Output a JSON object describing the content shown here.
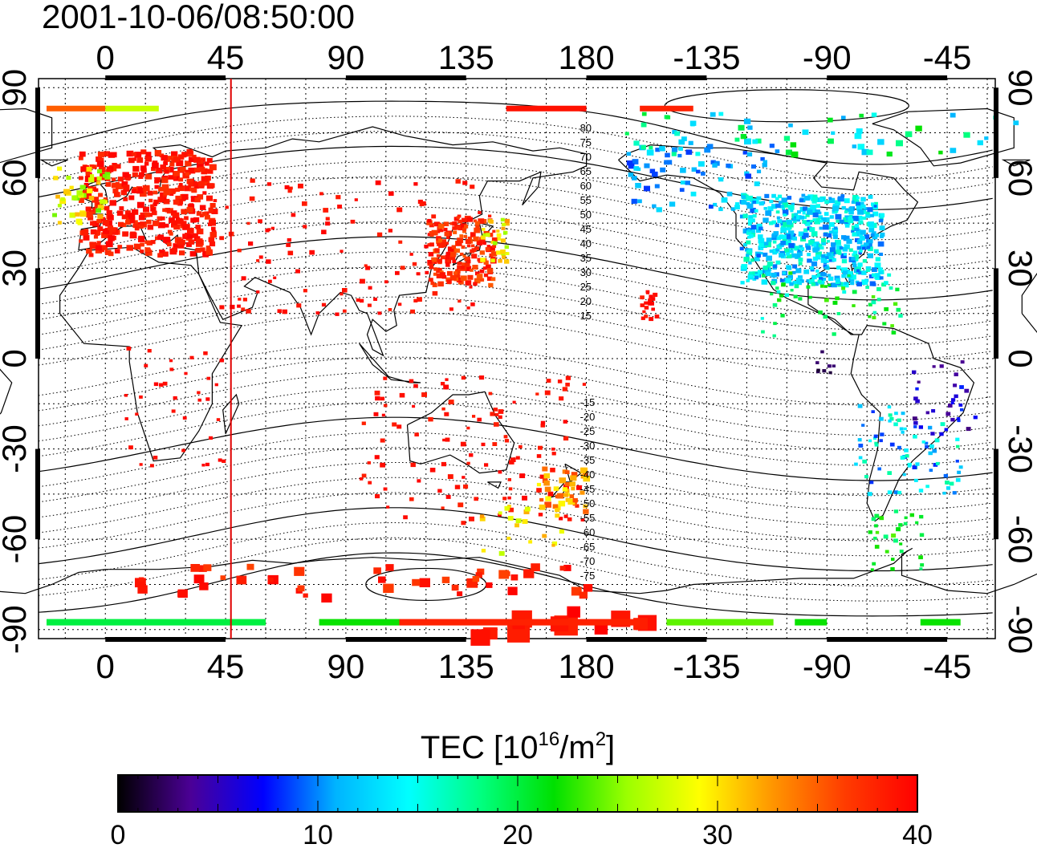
{
  "timestamp": "2001-10-06/08:50:00",
  "map": {
    "lon_ticks_top": [
      "0",
      "45",
      "90",
      "135",
      "180",
      "-135",
      "-90",
      "-45"
    ],
    "lon_ticks_bottom": [
      "0",
      "45",
      "90",
      "135",
      "180",
      "-135",
      "-90",
      "-45"
    ],
    "lat_ticks_left": [
      "90",
      "60",
      "30",
      "0",
      "-30",
      "-60",
      "-90"
    ],
    "lat_ticks_right": [
      "90",
      "60",
      "30",
      "0",
      "-30",
      "-60",
      "-90"
    ],
    "lon_tick_values": [
      0,
      45,
      90,
      135,
      180,
      225,
      270,
      315
    ],
    "lat_tick_values": [
      90,
      60,
      30,
      0,
      -30,
      -60,
      -90
    ],
    "lon_range": [
      -25,
      333
    ],
    "lat_range": [
      -93,
      93
    ],
    "grid": true,
    "marker_meridian_lon": 47,
    "marker_color": "#e00000",
    "contour_labels": [
      "80",
      "75",
      "70",
      "65",
      "60",
      "55",
      "50",
      "45",
      "40",
      "35",
      "30",
      "25",
      "20",
      "15",
      "-15",
      "-20",
      "-25",
      "-30",
      "-35",
      "-40",
      "-45",
      "-50",
      "-55",
      "-60",
      "-65",
      "-70",
      "-75"
    ],
    "contour_label_lats": [
      80,
      75,
      70,
      65,
      60,
      55,
      50,
      45,
      40,
      35,
      30,
      25,
      20,
      15,
      -15,
      -20,
      -25,
      -30,
      -35,
      -40,
      -45,
      -50,
      -55,
      -60,
      -65,
      -70,
      -75
    ],
    "contour_label_lon": 180
  },
  "colorbar": {
    "title_prefix": "TEC  [10",
    "title_exp1": "16",
    "title_mid": "/m",
    "title_exp2": "2",
    "title_suffix": "]",
    "tick_labels": [
      "0",
      "10",
      "20",
      "30",
      "40"
    ],
    "min": 0,
    "max": 40,
    "stops": [
      "#000000",
      "#4b0096",
      "#0000ff",
      "#00b4ff",
      "#00ffff",
      "#00ff7f",
      "#00e000",
      "#9bff00",
      "#ffff00",
      "#ff9600",
      "#ff3c00",
      "#ff0000"
    ]
  }
}
